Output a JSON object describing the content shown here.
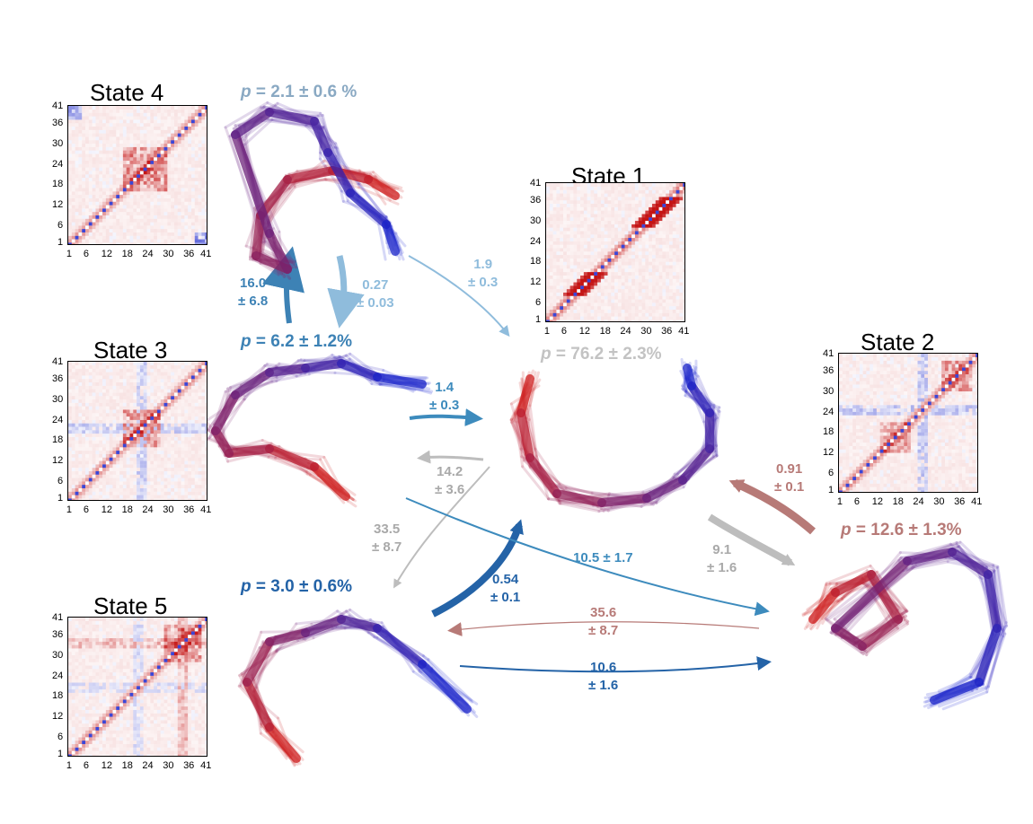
{
  "ticks": [
    "1",
    "6",
    "12",
    "18",
    "24",
    "30",
    "36",
    "41"
  ],
  "states": {
    "s1": {
      "title": "State 1",
      "p_label": "p",
      "p_rest": " = 76.2 ± 2.3%",
      "color": "#c3c3c3"
    },
    "s2": {
      "title": "State 2",
      "p_label": "p",
      "p_rest": " = 12.6 ± 1.3%",
      "color": "#b77a77"
    },
    "s3": {
      "title": "State 3",
      "p_label": "p",
      "p_rest": " = 6.2 ± 1.2%",
      "color": "#3d82b5"
    },
    "s4": {
      "title": "State 4",
      "p_label": "p",
      "p_rest": " = 2.1 ± 0.6 %",
      "color": "#8aa9c3"
    },
    "s5": {
      "title": "State 5",
      "p_label": "p",
      "p_rest": " = 3.0 ± 0.6%",
      "color": "#2463a7"
    }
  },
  "rates": {
    "r3to4": {
      "value": "16.0",
      "err": "± 6.8",
      "color": "#3d82b5"
    },
    "r4to3": {
      "value": "0.27",
      "err": "± 0.03",
      "color": "#8fbcdc"
    },
    "r4to1": {
      "value": "1.9",
      "err": "± 0.3",
      "color": "#8fbcdc"
    },
    "r3to1": {
      "value": "1.4",
      "err": "± 0.3",
      "color": "#3d8bbd"
    },
    "r1to3": {
      "value": "14.2",
      "err": "± 3.6",
      "color": "#a9a9a9"
    },
    "r1to5": {
      "value": "33.5",
      "err": "± 8.7",
      "color": "#a9a9a9"
    },
    "r5to1": {
      "value": "0.54",
      "err": "± 0.1",
      "color": "#2463a7"
    },
    "r3to2": {
      "value": "10.5 ± 1.7",
      "color": "#3d8bbd"
    },
    "r1to2": {
      "value": "9.1",
      "err": "± 1.6",
      "color": "#a9a9a9"
    },
    "r2to1": {
      "value": "0.91",
      "err": "± 0.1",
      "color": "#b77a77"
    },
    "r2to5": {
      "value": "35.6",
      "err": "± 8.7",
      "color": "#b77a77"
    },
    "r5to2": {
      "value": "10.6",
      "err": "± 1.6",
      "color": "#2463a7"
    }
  },
  "colors": {
    "blue": "#1f3fd0",
    "red": "#d01f1f",
    "gray": "#bdbdbd"
  }
}
